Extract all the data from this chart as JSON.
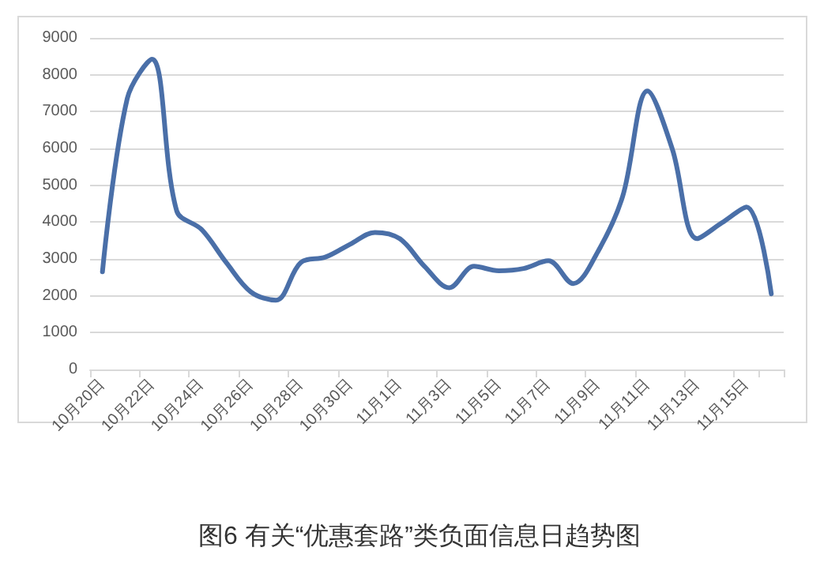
{
  "chart_data": {
    "type": "line",
    "title": "图6 有关“优惠套路”类负面信息日趋势图",
    "categories": [
      "10月20日",
      null,
      "10月22日",
      null,
      "10月24日",
      null,
      "10月26日",
      null,
      "10月28日",
      null,
      "10月30日",
      null,
      "11月1日",
      null,
      "11月3日",
      null,
      "11月5日",
      null,
      "11月7日",
      null,
      "11月9日",
      null,
      "11月11日",
      null,
      "11月13日",
      null,
      "11月15日",
      null
    ],
    "series": [
      {
        "color": "#4a6fa8",
        "values": [
          2650,
          7350,
          8420,
          4300,
          3800,
          2900,
          2100,
          1880,
          2900,
          3050,
          3400,
          3720,
          3550,
          2800,
          2220,
          2800,
          2680,
          2740,
          2950,
          2330,
          3200,
          4700,
          7560,
          5990,
          3550,
          3980,
          4410,
          2050
        ]
      }
    ],
    "ylim": [
      0,
      9000
    ],
    "yticks": [
      0,
      1000,
      2000,
      3000,
      4000,
      5000,
      6000,
      7000,
      8000,
      9000
    ],
    "grid": "y",
    "marker": "none",
    "line_style": "solid"
  }
}
